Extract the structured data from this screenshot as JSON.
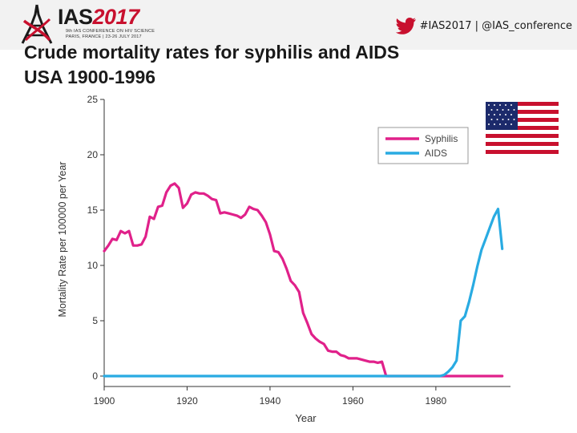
{
  "header": {
    "logo_name": "IAS",
    "logo_year": "2017",
    "logo_tagline_1": "9th IAS CONFERENCE ON HIV SCIENCE",
    "logo_tagline_2": "PARIS, FRANCE | 23-26 JULY 2017",
    "social_handle": "#IAS2017 | @IAS_conference",
    "icons": [
      "eiffel-tower-icon",
      "twitter-bird-icon",
      "us-flag-icon"
    ]
  },
  "slide": {
    "title_line1": "Crude mortality rates for syphilis and AIDS",
    "title_line2": "USA 1900-1996"
  },
  "colors": {
    "syphilis": "#e0218a",
    "aids": "#29abe2",
    "brand_red": "#c8102e",
    "twitter": "#c8102e"
  },
  "chart_data": {
    "type": "line",
    "title": "",
    "xlabel": "Year",
    "ylabel": "Mortality Rate per 100000 per Year",
    "xlim": [
      1900,
      1998
    ],
    "ylim": [
      0,
      25
    ],
    "xticks": [
      1900,
      1920,
      1940,
      1960,
      1980
    ],
    "yticks": [
      0,
      5,
      10,
      15,
      20,
      25
    ],
    "grid": false,
    "legend_position": "top-right",
    "series": [
      {
        "name": "Syphilis",
        "color": "#e0218a",
        "points": [
          [
            1900,
            11.3
          ],
          [
            1901,
            11.8
          ],
          [
            1902,
            12.4
          ],
          [
            1903,
            12.3
          ],
          [
            1904,
            13.1
          ],
          [
            1905,
            12.9
          ],
          [
            1906,
            13.1
          ],
          [
            1907,
            11.8
          ],
          [
            1908,
            11.8
          ],
          [
            1909,
            11.9
          ],
          [
            1910,
            12.6
          ],
          [
            1911,
            14.4
          ],
          [
            1912,
            14.2
          ],
          [
            1913,
            15.3
          ],
          [
            1914,
            15.4
          ],
          [
            1915,
            16.6
          ],
          [
            1916,
            17.2
          ],
          [
            1917,
            17.4
          ],
          [
            1918,
            17.0
          ],
          [
            1919,
            15.2
          ],
          [
            1920,
            15.6
          ],
          [
            1921,
            16.4
          ],
          [
            1922,
            16.6
          ],
          [
            1923,
            16.5
          ],
          [
            1924,
            16.5
          ],
          [
            1925,
            16.3
          ],
          [
            1926,
            16.0
          ],
          [
            1927,
            15.9
          ],
          [
            1928,
            14.7
          ],
          [
            1929,
            14.8
          ],
          [
            1930,
            14.7
          ],
          [
            1931,
            14.6
          ],
          [
            1932,
            14.5
          ],
          [
            1933,
            14.3
          ],
          [
            1934,
            14.6
          ],
          [
            1935,
            15.3
          ],
          [
            1936,
            15.1
          ],
          [
            1937,
            15.0
          ],
          [
            1938,
            14.5
          ],
          [
            1939,
            13.9
          ],
          [
            1940,
            12.8
          ],
          [
            1941,
            11.3
          ],
          [
            1942,
            11.2
          ],
          [
            1943,
            10.6
          ],
          [
            1944,
            9.7
          ],
          [
            1945,
            8.6
          ],
          [
            1946,
            8.2
          ],
          [
            1947,
            7.6
          ],
          [
            1948,
            5.7
          ],
          [
            1949,
            4.8
          ],
          [
            1950,
            3.8
          ],
          [
            1951,
            3.4
          ],
          [
            1952,
            3.1
          ],
          [
            1953,
            2.9
          ],
          [
            1954,
            2.3
          ],
          [
            1955,
            2.2
          ],
          [
            1956,
            2.2
          ],
          [
            1957,
            1.9
          ],
          [
            1958,
            1.8
          ],
          [
            1959,
            1.6
          ],
          [
            1960,
            1.6
          ],
          [
            1961,
            1.6
          ],
          [
            1962,
            1.5
          ],
          [
            1963,
            1.4
          ],
          [
            1964,
            1.3
          ],
          [
            1965,
            1.3
          ],
          [
            1966,
            1.2
          ],
          [
            1967,
            1.3
          ],
          [
            1968,
            0.0
          ],
          [
            1970,
            0.0
          ],
          [
            1980,
            0.0
          ],
          [
            1990,
            0.0
          ],
          [
            1996,
            0.0
          ]
        ]
      },
      {
        "name": "AIDS",
        "color": "#29abe2",
        "points": [
          [
            1900,
            0.0
          ],
          [
            1920,
            0.0
          ],
          [
            1940,
            0.0
          ],
          [
            1960,
            0.0
          ],
          [
            1981,
            0.0
          ],
          [
            1982,
            0.1
          ],
          [
            1983,
            0.4
          ],
          [
            1984,
            0.8
          ],
          [
            1985,
            1.4
          ],
          [
            1986,
            5.0
          ],
          [
            1987,
            5.4
          ],
          [
            1988,
            6.7
          ],
          [
            1989,
            8.2
          ],
          [
            1990,
            9.9
          ],
          [
            1991,
            11.4
          ],
          [
            1992,
            12.4
          ],
          [
            1993,
            13.4
          ],
          [
            1994,
            14.4
          ],
          [
            1995,
            15.1
          ],
          [
            1996,
            11.5
          ]
        ]
      }
    ]
  }
}
